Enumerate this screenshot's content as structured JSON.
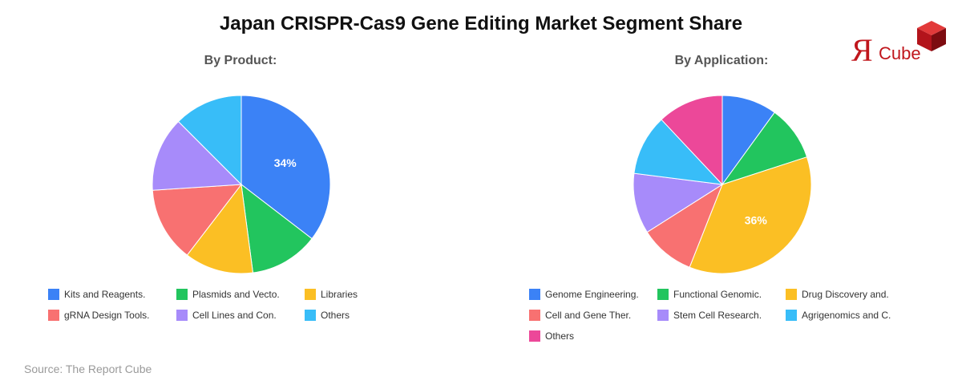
{
  "title": "Japan CRISPR-Cas9 Gene Editing Market Segment Share",
  "source": "Source: The Report Cube",
  "logo": {
    "mark": "Я",
    "text": "Cube",
    "mark_color": "#c0161c",
    "cube_color": "#c0161c"
  },
  "chart_data": [
    {
      "type": "pie",
      "title": "By Product:",
      "series": [
        {
          "name": "Kits and Reagents.",
          "value": 34,
          "color": "#3b82f6"
        },
        {
          "name": "Plasmids and Vecto.",
          "value": 12,
          "color": "#22c55e"
        },
        {
          "name": "Libraries",
          "value": 12,
          "color": "#fbbf24"
        },
        {
          "name": "gRNA Design Tools.",
          "value": 13,
          "color": "#f87171"
        },
        {
          "name": "Cell Lines and Con.",
          "value": 13,
          "color": "#a78bfa"
        },
        {
          "name": "Others",
          "value": 12,
          "color": "#38bdf8"
        }
      ],
      "data_labels": [
        {
          "series": "Kits and Reagents.",
          "text": "34%"
        }
      ],
      "legend_position": "bottom"
    },
    {
      "type": "pie",
      "title": "By Application:",
      "series": [
        {
          "name": "Genome Engineering.",
          "value": 10,
          "color": "#3b82f6"
        },
        {
          "name": "Functional Genomic.",
          "value": 10,
          "color": "#22c55e"
        },
        {
          "name": "Drug Discovery and.",
          "value": 36,
          "color": "#fbbf24"
        },
        {
          "name": "Cell and Gene Ther.",
          "value": 10,
          "color": "#f87171"
        },
        {
          "name": "Stem Cell Research.",
          "value": 11,
          "color": "#a78bfa"
        },
        {
          "name": "Agrigenomics and C.",
          "value": 11,
          "color": "#38bdf8"
        },
        {
          "name": "Others",
          "value": 12,
          "color": "#ec4899"
        }
      ],
      "data_labels": [
        {
          "series": "Drug Discovery and.",
          "text": "36%"
        }
      ],
      "legend_position": "bottom"
    }
  ]
}
